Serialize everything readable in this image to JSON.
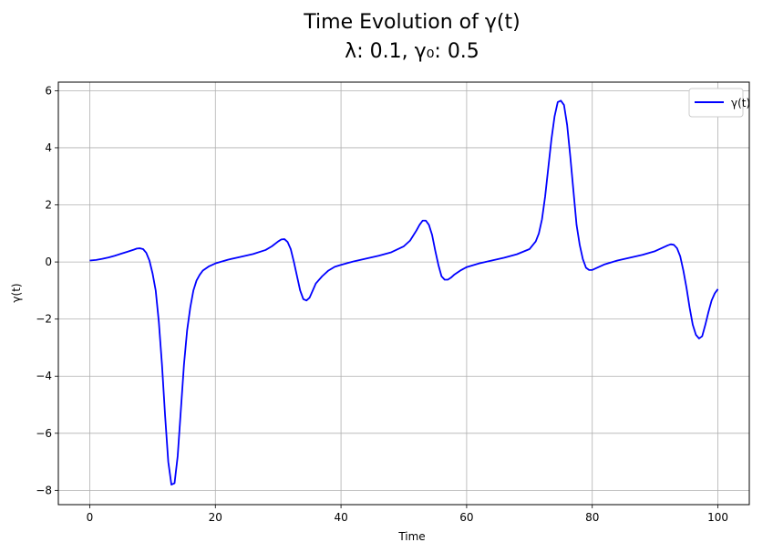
{
  "chart_data": {
    "type": "line",
    "title_line1": "Time Evolution of γ(t)",
    "title_line2": "λ: 0.1, γ₀: 0.5",
    "xlabel": "Time",
    "ylabel": "γ(t)",
    "xlim": [
      -5,
      105
    ],
    "ylim": [
      -8.5,
      6.3
    ],
    "xticks": [
      0,
      20,
      40,
      60,
      80,
      100
    ],
    "yticks": [
      -8,
      -6,
      -4,
      -2,
      0,
      2,
      4,
      6
    ],
    "xtick_labels": [
      "0",
      "20",
      "40",
      "60",
      "80",
      "100"
    ],
    "ytick_labels": [
      "−8",
      "−6",
      "−4",
      "−2",
      "0",
      "2",
      "4",
      "6"
    ],
    "grid": true,
    "legend_position": "top-right",
    "series": [
      {
        "name": "γ(t)",
        "color": "#0000ff",
        "x": [
          0,
          1,
          2,
          3,
          4,
          5,
          6,
          7,
          7.5,
          8,
          8.5,
          9,
          9.5,
          10,
          10.5,
          11,
          11.5,
          12,
          12.5,
          13,
          13.5,
          14,
          14.5,
          15,
          15.5,
          16,
          16.5,
          17,
          17.5,
          18,
          19,
          20,
          22,
          24,
          26,
          28,
          29,
          30,
          30.5,
          31,
          31.5,
          32,
          32.5,
          33,
          33.5,
          34,
          34.5,
          35,
          35.5,
          36,
          37,
          38,
          39,
          40,
          42,
          44,
          46,
          48,
          50,
          51,
          52,
          52.5,
          53,
          53.5,
          54,
          54.5,
          55,
          55.5,
          56,
          56.5,
          57,
          57.5,
          58,
          59,
          60,
          62,
          64,
          66,
          68,
          70,
          71,
          71.5,
          72,
          72.5,
          73,
          73.5,
          74,
          74.5,
          75,
          75.5,
          76,
          76.5,
          77,
          77.5,
          78,
          78.5,
          79,
          79.5,
          80,
          81,
          82,
          84,
          86,
          88,
          90,
          91,
          92,
          92.5,
          93,
          93.5,
          94,
          94.5,
          95,
          95.5,
          96,
          96.5,
          97,
          97.5,
          98,
          98.5,
          99,
          99.5,
          100
        ],
        "y": [
          0.05,
          0.07,
          0.11,
          0.16,
          0.22,
          0.29,
          0.36,
          0.43,
          0.47,
          0.48,
          0.45,
          0.32,
          0.05,
          -0.4,
          -1.0,
          -2.1,
          -3.6,
          -5.4,
          -7.0,
          -7.8,
          -7.75,
          -6.8,
          -5.2,
          -3.6,
          -2.4,
          -1.6,
          -1.0,
          -0.65,
          -0.45,
          -0.3,
          -0.15,
          -0.05,
          0.08,
          0.18,
          0.28,
          0.42,
          0.55,
          0.72,
          0.79,
          0.8,
          0.7,
          0.45,
          0.0,
          -0.5,
          -1.0,
          -1.3,
          -1.35,
          -1.25,
          -1.0,
          -0.75,
          -0.5,
          -0.3,
          -0.17,
          -0.1,
          0.02,
          0.12,
          0.22,
          0.34,
          0.55,
          0.75,
          1.1,
          1.3,
          1.45,
          1.45,
          1.3,
          0.95,
          0.4,
          -0.1,
          -0.5,
          -0.62,
          -0.62,
          -0.55,
          -0.45,
          -0.3,
          -0.18,
          -0.05,
          0.05,
          0.15,
          0.27,
          0.45,
          0.72,
          1.0,
          1.5,
          2.3,
          3.3,
          4.3,
          5.1,
          5.6,
          5.65,
          5.5,
          4.8,
          3.7,
          2.5,
          1.3,
          0.6,
          0.1,
          -0.2,
          -0.28,
          -0.28,
          -0.18,
          -0.08,
          0.05,
          0.15,
          0.25,
          0.38,
          0.48,
          0.58,
          0.62,
          0.6,
          0.48,
          0.2,
          -0.3,
          -0.9,
          -1.6,
          -2.2,
          -2.55,
          -2.68,
          -2.6,
          -2.2,
          -1.75,
          -1.35,
          -1.1,
          -0.95
        ]
      }
    ]
  }
}
